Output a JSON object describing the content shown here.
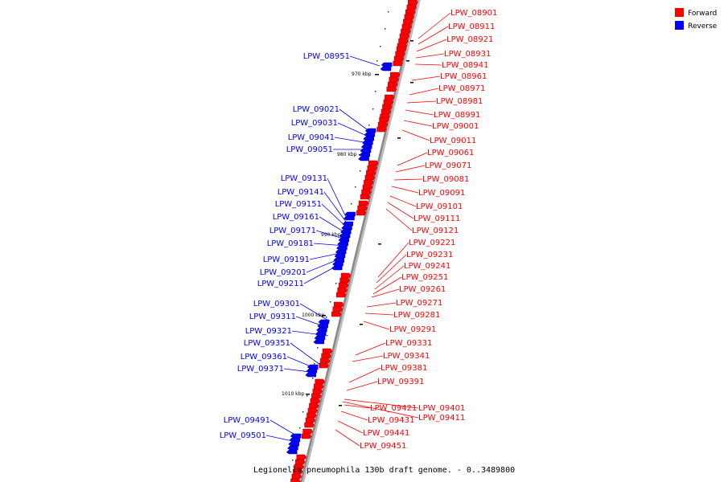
{
  "caption": "Legionella pneumophila 130b draft genome. - 0..3489800",
  "legend": [
    {
      "label": "Forward",
      "color": "#ff0000"
    },
    {
      "label": "Reverse",
      "color": "#0000ff"
    }
  ],
  "colors": {
    "forward": "#ff0000",
    "reverse": "#0000ff",
    "backbone": "#888888"
  },
  "scale_labels": [
    "970 kbp",
    "980 kbp",
    "990 kbp",
    "1000 kbp",
    "1010 kbp"
  ],
  "forward_genes": [
    "LPW_08901",
    "LPW_08911",
    "LPW_08921",
    "LPW_08931",
    "LPW_08941",
    "LPW_08961",
    "LPW_08971",
    "LPW_08981",
    "LPW_08991",
    "LPW_09001",
    "LPW_09011",
    "LPW_09061",
    "LPW_09071",
    "LPW_09081",
    "LPW_09091",
    "LPW_09101",
    "LPW_09111",
    "LPW_09121",
    "LPW_09221",
    "LPW_09231",
    "LPW_09241",
    "LPW_09251",
    "LPW_09261",
    "LPW_09271",
    "LPW_09281",
    "LPW_09291",
    "LPW_09331",
    "LPW_09341",
    "LPW_09381",
    "LPW_09391",
    "LPW_09401",
    "LPW_09411",
    "LPW_09421",
    "LPW_09431",
    "LPW_09441",
    "LPW_09451"
  ],
  "reverse_genes": [
    "LPW_08951",
    "LPW_09021",
    "LPW_09031",
    "LPW_09041",
    "LPW_09051",
    "LPW_09131",
    "LPW_09141",
    "LPW_09151",
    "LPW_09161",
    "LPW_09171",
    "LPW_09181",
    "LPW_09191",
    "LPW_09201",
    "LPW_09211",
    "LPW_09301",
    "LPW_09311",
    "LPW_09321",
    "LPW_09351",
    "LPW_09361",
    "LPW_09371",
    "LPW_09491",
    "LPW_09501"
  ]
}
